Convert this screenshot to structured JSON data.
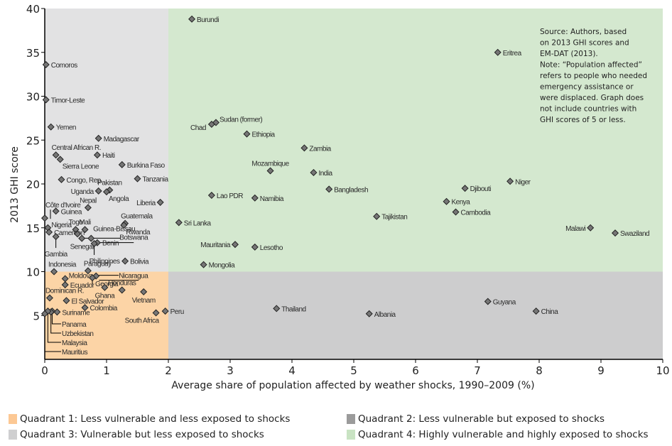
{
  "chart_data": {
    "type": "scatter",
    "title": "",
    "xlabel": "Average share of population affected by weather shocks, 1990–2009 (%)",
    "ylabel": "2013 GHI score",
    "xlim": [
      0,
      10
    ],
    "ylim": [
      0,
      40
    ],
    "xticks": [
      0,
      1,
      2,
      3,
      4,
      5,
      6,
      7,
      8,
      9,
      10
    ],
    "yticks": [
      5,
      10,
      15,
      20,
      25,
      30,
      35,
      40
    ],
    "grid": false,
    "quadrants": {
      "x_split": 2,
      "y_split": 10,
      "colors": {
        "q1": "#fcd4a6",
        "q2": "#cdcdce",
        "q3": "#e2e2e3",
        "q4": "#d4e8cf"
      }
    },
    "note_lines": [
      "Source: Authors, based",
      "on 2013 GHI scores and",
      "EM-DAT (2013).",
      "Note: “Population affected”",
      "refers to people who needed",
      "emergency assistance or",
      "were displaced. Graph does",
      "not include countries with",
      "GHI scores of 5 or less."
    ],
    "points": [
      {
        "name": "Burundi",
        "x": 2.38,
        "y": 38.8,
        "anchor": "right"
      },
      {
        "name": "Eritrea",
        "x": 7.33,
        "y": 35.0,
        "anchor": "right"
      },
      {
        "name": "Comoros",
        "x": 0.02,
        "y": 33.6,
        "anchor": "right"
      },
      {
        "name": "Timor-Leste",
        "x": 0.02,
        "y": 29.6,
        "anchor": "right"
      },
      {
        "name": "Yemen",
        "x": 0.1,
        "y": 26.5,
        "anchor": "right"
      },
      {
        "name": "Sudan (former)",
        "x": 2.77,
        "y": 27.0,
        "anchor": "right-up"
      },
      {
        "name": "Chad",
        "x": 2.7,
        "y": 26.8,
        "anchor": "left-down"
      },
      {
        "name": "Ethiopia",
        "x": 3.27,
        "y": 25.7,
        "anchor": "right"
      },
      {
        "name": "Madagascar",
        "x": 0.87,
        "y": 25.2,
        "anchor": "right"
      },
      {
        "name": "Zambia",
        "x": 4.2,
        "y": 24.1,
        "anchor": "right"
      },
      {
        "name": "Central African R.",
        "x": 0.18,
        "y": 23.3,
        "anchor": "above-right"
      },
      {
        "name": "Haiti",
        "x": 0.85,
        "y": 23.3,
        "anchor": "right"
      },
      {
        "name": "Sierra Leone",
        "x": 0.25,
        "y": 22.8,
        "anchor": "below-right"
      },
      {
        "name": "Burkina Faso",
        "x": 1.25,
        "y": 22.2,
        "anchor": "right"
      },
      {
        "name": "Mozambique",
        "x": 3.65,
        "y": 21.5,
        "anchor": "above"
      },
      {
        "name": "India",
        "x": 4.35,
        "y": 21.3,
        "anchor": "right"
      },
      {
        "name": "Tanzania",
        "x": 1.5,
        "y": 20.6,
        "anchor": "right"
      },
      {
        "name": "Congo, Rep.",
        "x": 0.27,
        "y": 20.5,
        "anchor": "right"
      },
      {
        "name": "Niger",
        "x": 7.53,
        "y": 20.3,
        "anchor": "right"
      },
      {
        "name": "Djibouti",
        "x": 6.8,
        "y": 19.5,
        "anchor": "right"
      },
      {
        "name": "Bangladesh",
        "x": 4.6,
        "y": 19.4,
        "anchor": "right"
      },
      {
        "name": "Pakistan",
        "x": 1.05,
        "y": 19.3,
        "anchor": "above"
      },
      {
        "name": "Uganda",
        "x": 0.87,
        "y": 19.2,
        "anchor": "left"
      },
      {
        "name": "Angola",
        "x": 1.0,
        "y": 19.1,
        "anchor": "below-right"
      },
      {
        "name": "Lao PDR",
        "x": 2.7,
        "y": 18.7,
        "anchor": "right"
      },
      {
        "name": "Namibia",
        "x": 3.4,
        "y": 18.4,
        "anchor": "right"
      },
      {
        "name": "Kenya",
        "x": 6.5,
        "y": 18.0,
        "anchor": "right"
      },
      {
        "name": "Liberia",
        "x": 1.87,
        "y": 17.9,
        "anchor": "left"
      },
      {
        "name": "Nepal",
        "x": 0.7,
        "y": 17.3,
        "anchor": "above"
      },
      {
        "name": "Guinea",
        "x": 0.18,
        "y": 16.9,
        "anchor": "right"
      },
      {
        "name": "Cambodia",
        "x": 6.65,
        "y": 16.8,
        "anchor": "right"
      },
      {
        "name": "Tajikistan",
        "x": 5.37,
        "y": 16.3,
        "anchor": "right"
      },
      {
        "name": "Côte d'Ivoire",
        "x": 0.0,
        "y": 16.1,
        "anchor": "leader-up"
      },
      {
        "name": "Sri Lanka",
        "x": 2.17,
        "y": 15.6,
        "anchor": "right"
      },
      {
        "name": "Guatemala",
        "x": 1.3,
        "y": 15.5,
        "anchor": "above-right"
      },
      {
        "name": "Rwanda",
        "x": 1.28,
        "y": 15.3,
        "anchor": "below-right"
      },
      {
        "name": "Malawi",
        "x": 8.83,
        "y": 15.0,
        "anchor": "left"
      },
      {
        "name": "Nigeria",
        "x": 0.05,
        "y": 15.0,
        "anchor": "right-up"
      },
      {
        "name": "Togo",
        "x": 0.5,
        "y": 14.8,
        "anchor": "above"
      },
      {
        "name": "Mali",
        "x": 0.65,
        "y": 14.8,
        "anchor": "above"
      },
      {
        "name": "Cameroon",
        "x": 0.07,
        "y": 14.5,
        "anchor": "right"
      },
      {
        "name": "Swaziland",
        "x": 9.23,
        "y": 14.4,
        "anchor": "right"
      },
      {
        "name": "Guinea-Bissau",
        "x": 0.53,
        "y": 14.3,
        "anchor": "leader-right"
      },
      {
        "name": "Gambia",
        "x": 0.18,
        "y": 14.0,
        "anchor": "leader-down"
      },
      {
        "name": "Senegal",
        "x": 0.6,
        "y": 13.8,
        "anchor": "below"
      },
      {
        "name": "Botswana",
        "x": 0.75,
        "y": 13.8,
        "anchor": "leader-right"
      },
      {
        "name": "Benin",
        "x": 0.85,
        "y": 13.3,
        "anchor": "right"
      },
      {
        "name": "Philippines",
        "x": 0.8,
        "y": 13.2,
        "anchor": "leader-down"
      },
      {
        "name": "Mauritania",
        "x": 3.08,
        "y": 13.1,
        "anchor": "left"
      },
      {
        "name": "Lesotho",
        "x": 3.4,
        "y": 12.8,
        "anchor": "right"
      },
      {
        "name": "Bolivia",
        "x": 1.3,
        "y": 11.2,
        "anchor": "right"
      },
      {
        "name": "Mongolia",
        "x": 2.57,
        "y": 10.8,
        "anchor": "right"
      },
      {
        "name": "Indonesia",
        "x": 0.15,
        "y": 10.0,
        "anchor": "above-left"
      },
      {
        "name": "Paraguay",
        "x": 0.7,
        "y": 10.1,
        "anchor": "above-right"
      },
      {
        "name": "Moldova",
        "x": 0.33,
        "y": 9.2,
        "anchor": "right-up"
      },
      {
        "name": "Nicaragua",
        "x": 0.83,
        "y": 9.5,
        "anchor": "leader-right"
      },
      {
        "name": "Georgia",
        "x": 0.77,
        "y": 9.3,
        "anchor": "leader-below"
      },
      {
        "name": "Ecuador",
        "x": 0.33,
        "y": 8.5,
        "anchor": "right"
      },
      {
        "name": "Ghana",
        "x": 0.97,
        "y": 8.2,
        "anchor": "below"
      },
      {
        "name": "Honduras",
        "x": 1.25,
        "y": 7.9,
        "anchor": "above"
      },
      {
        "name": "Vietnam",
        "x": 1.6,
        "y": 7.7,
        "anchor": "below"
      },
      {
        "name": "Dominican R.",
        "x": 0.08,
        "y": 7.0,
        "anchor": "above-right"
      },
      {
        "name": "El Salvador",
        "x": 0.35,
        "y": 6.7,
        "anchor": "right"
      },
      {
        "name": "Guyana",
        "x": 7.17,
        "y": 6.6,
        "anchor": "right"
      },
      {
        "name": "Colombia",
        "x": 0.65,
        "y": 5.9,
        "anchor": "right"
      },
      {
        "name": "Thailand",
        "x": 3.75,
        "y": 5.8,
        "anchor": "right"
      },
      {
        "name": "China",
        "x": 7.95,
        "y": 5.5,
        "anchor": "right"
      },
      {
        "name": "Peru",
        "x": 1.95,
        "y": 5.5,
        "anchor": "right"
      },
      {
        "name": "South Africa",
        "x": 1.8,
        "y": 5.3,
        "anchor": "below-left"
      },
      {
        "name": "Suriname",
        "x": 0.2,
        "y": 5.4,
        "anchor": "right"
      },
      {
        "name": "Albania",
        "x": 5.25,
        "y": 5.2,
        "anchor": "right"
      },
      {
        "name": "Panama",
        "x": 0.12,
        "y": 5.5,
        "anchor": "leader-list-1"
      },
      {
        "name": "Uzbekistan",
        "x": 0.1,
        "y": 5.4,
        "anchor": "leader-list-2"
      },
      {
        "name": "Malaysia",
        "x": 0.05,
        "y": 5.5,
        "anchor": "leader-list-3"
      },
      {
        "name": "Mauritius",
        "x": 0.0,
        "y": 5.2,
        "anchor": "leader-list-4"
      }
    ],
    "legend": [
      {
        "label": "Quadrant 1: Less vulnerable and less exposed to shocks",
        "color": "#fcc894"
      },
      {
        "label": "Quadrant 2: Less vulnerable but exposed to shocks",
        "color": "#9b9b9b"
      },
      {
        "label": "Quadrant 3: Vulnerable but less exposed to shocks",
        "color": "#cfcfd0"
      },
      {
        "label": "Quadrant 4: Highly vulnerable and highly exposed to shocks",
        "color": "#c9e3c3"
      }
    ],
    "legend_position": "bottom"
  }
}
